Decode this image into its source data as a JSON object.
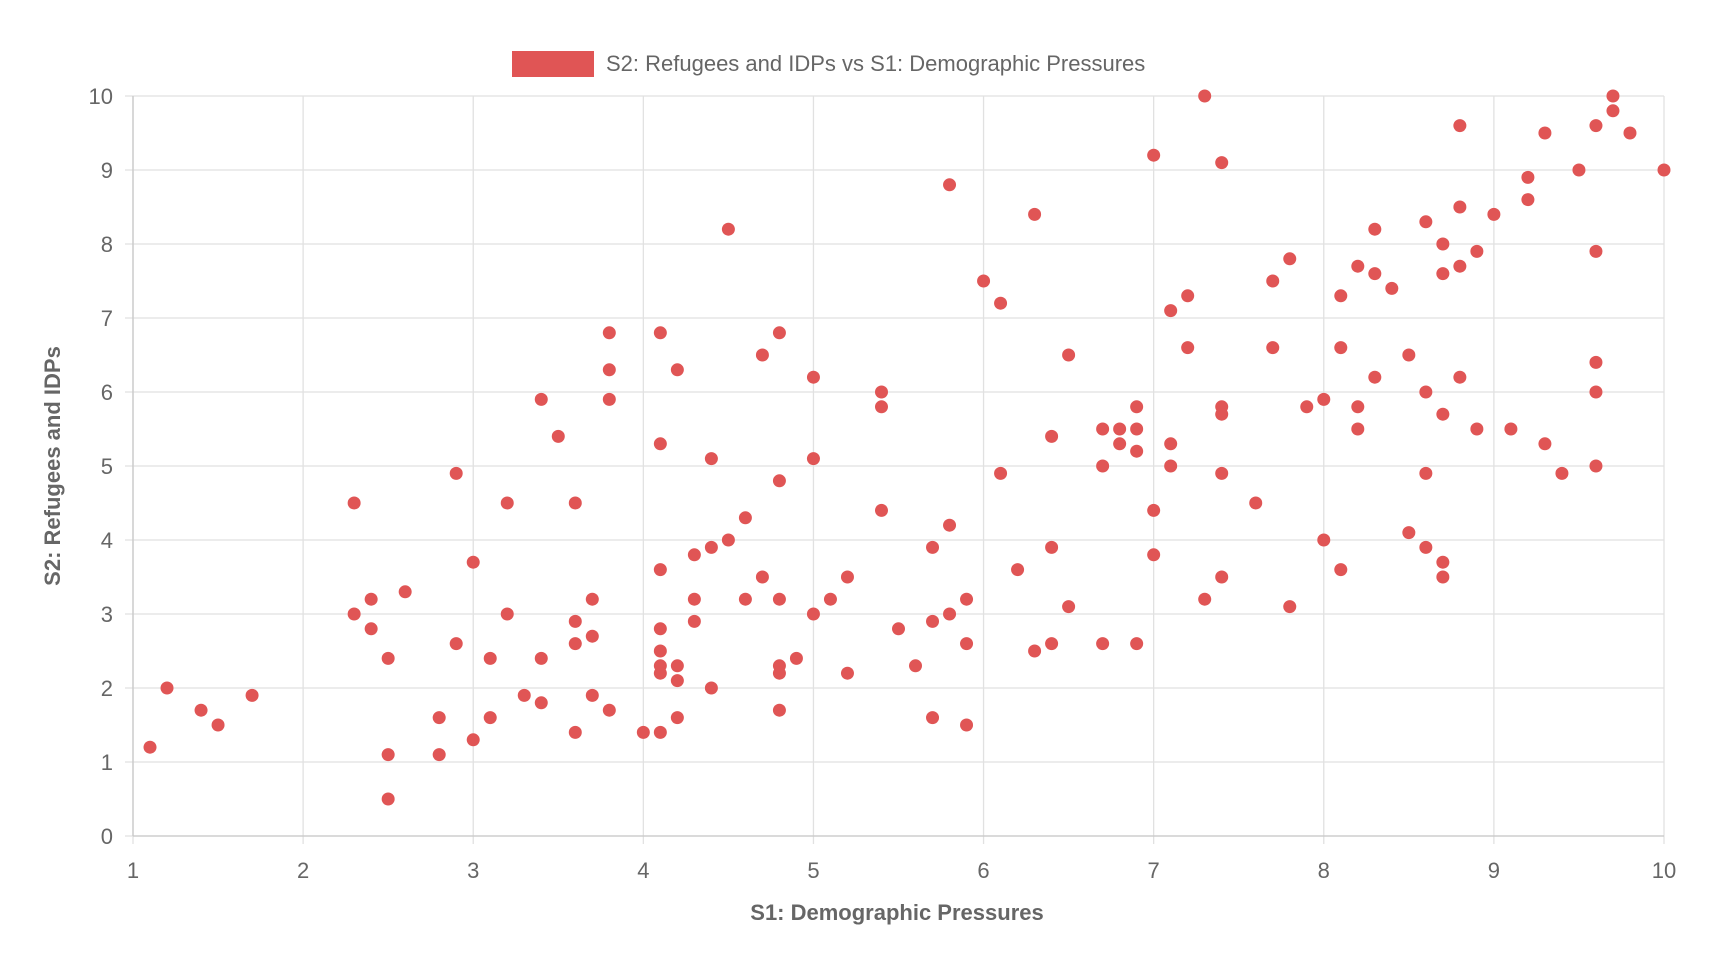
{
  "chart_data": {
    "type": "scatter",
    "xlabel": "S1: Demographic Pressures",
    "ylabel": "S2: Refugees and IDPs",
    "xlim": [
      1,
      10
    ],
    "ylim": [
      0,
      10
    ],
    "xticks": [
      "1",
      "2",
      "3",
      "4",
      "5",
      "6",
      "7",
      "8",
      "9",
      "10"
    ],
    "yticks": [
      "0",
      "1",
      "2",
      "3",
      "4",
      "5",
      "6",
      "7",
      "8",
      "9",
      "10"
    ],
    "grid": true,
    "legend": {
      "position": "top",
      "entries": [
        "S2: Refugees and IDPs vs S1: Demographic Pressures"
      ]
    },
    "series": [
      {
        "name": "S2: Refugees and IDPs vs S1: Demographic Pressures",
        "color": "#e05555",
        "points": [
          {
            "x": 1.1,
            "y": 1.2
          },
          {
            "x": 1.2,
            "y": 2.0
          },
          {
            "x": 1.4,
            "y": 1.7
          },
          {
            "x": 1.5,
            "y": 1.5
          },
          {
            "x": 1.7,
            "y": 1.9
          },
          {
            "x": 2.3,
            "y": 4.5
          },
          {
            "x": 2.3,
            "y": 3.0
          },
          {
            "x": 2.4,
            "y": 3.2
          },
          {
            "x": 2.4,
            "y": 2.8
          },
          {
            "x": 2.5,
            "y": 2.4
          },
          {
            "x": 2.5,
            "y": 1.1
          },
          {
            "x": 2.5,
            "y": 0.5
          },
          {
            "x": 2.6,
            "y": 3.3
          },
          {
            "x": 2.8,
            "y": 1.6
          },
          {
            "x": 2.8,
            "y": 1.1
          },
          {
            "x": 2.9,
            "y": 4.9
          },
          {
            "x": 2.9,
            "y": 2.6
          },
          {
            "x": 3.0,
            "y": 3.7
          },
          {
            "x": 3.0,
            "y": 1.3
          },
          {
            "x": 3.1,
            "y": 2.4
          },
          {
            "x": 3.1,
            "y": 1.6
          },
          {
            "x": 3.2,
            "y": 4.5
          },
          {
            "x": 3.2,
            "y": 3.0
          },
          {
            "x": 3.3,
            "y": 1.9
          },
          {
            "x": 3.4,
            "y": 5.9
          },
          {
            "x": 3.4,
            "y": 2.4
          },
          {
            "x": 3.4,
            "y": 1.8
          },
          {
            "x": 3.5,
            "y": 5.4
          },
          {
            "x": 3.6,
            "y": 4.5
          },
          {
            "x": 3.6,
            "y": 2.9
          },
          {
            "x": 3.6,
            "y": 2.6
          },
          {
            "x": 3.6,
            "y": 1.4
          },
          {
            "x": 3.7,
            "y": 3.2
          },
          {
            "x": 3.7,
            "y": 2.7
          },
          {
            "x": 3.7,
            "y": 1.9
          },
          {
            "x": 3.8,
            "y": 6.8
          },
          {
            "x": 3.8,
            "y": 6.3
          },
          {
            "x": 3.8,
            "y": 5.9
          },
          {
            "x": 3.8,
            "y": 1.7
          },
          {
            "x": 4.0,
            "y": 1.4
          },
          {
            "x": 4.1,
            "y": 6.8
          },
          {
            "x": 4.1,
            "y": 5.3
          },
          {
            "x": 4.1,
            "y": 3.6
          },
          {
            "x": 4.1,
            "y": 2.8
          },
          {
            "x": 4.1,
            "y": 2.5
          },
          {
            "x": 4.1,
            "y": 2.3
          },
          {
            "x": 4.1,
            "y": 2.2
          },
          {
            "x": 4.1,
            "y": 1.4
          },
          {
            "x": 4.2,
            "y": 6.3
          },
          {
            "x": 4.2,
            "y": 2.3
          },
          {
            "x": 4.2,
            "y": 2.1
          },
          {
            "x": 4.2,
            "y": 1.6
          },
          {
            "x": 4.3,
            "y": 3.8
          },
          {
            "x": 4.3,
            "y": 3.2
          },
          {
            "x": 4.3,
            "y": 2.9
          },
          {
            "x": 4.4,
            "y": 5.1
          },
          {
            "x": 4.4,
            "y": 3.9
          },
          {
            "x": 4.4,
            "y": 2.0
          },
          {
            "x": 4.5,
            "y": 8.2
          },
          {
            "x": 4.5,
            "y": 4.0
          },
          {
            "x": 4.6,
            "y": 4.3
          },
          {
            "x": 4.6,
            "y": 3.2
          },
          {
            "x": 4.7,
            "y": 6.5
          },
          {
            "x": 4.7,
            "y": 3.5
          },
          {
            "x": 4.8,
            "y": 6.8
          },
          {
            "x": 4.8,
            "y": 4.8
          },
          {
            "x": 4.8,
            "y": 3.2
          },
          {
            "x": 4.8,
            "y": 2.3
          },
          {
            "x": 4.8,
            "y": 2.2
          },
          {
            "x": 4.8,
            "y": 1.7
          },
          {
            "x": 4.9,
            "y": 2.4
          },
          {
            "x": 5.0,
            "y": 6.2
          },
          {
            "x": 5.0,
            "y": 5.1
          },
          {
            "x": 5.0,
            "y": 3.0
          },
          {
            "x": 5.1,
            "y": 3.2
          },
          {
            "x": 5.2,
            "y": 3.5
          },
          {
            "x": 5.2,
            "y": 2.2
          },
          {
            "x": 5.4,
            "y": 6.0
          },
          {
            "x": 5.4,
            "y": 5.8
          },
          {
            "x": 5.4,
            "y": 4.4
          },
          {
            "x": 5.5,
            "y": 2.8
          },
          {
            "x": 5.6,
            "y": 2.3
          },
          {
            "x": 5.7,
            "y": 3.9
          },
          {
            "x": 5.7,
            "y": 2.9
          },
          {
            "x": 5.7,
            "y": 1.6
          },
          {
            "x": 5.8,
            "y": 8.8
          },
          {
            "x": 5.8,
            "y": 4.2
          },
          {
            "x": 5.8,
            "y": 3.0
          },
          {
            "x": 5.9,
            "y": 3.2
          },
          {
            "x": 5.9,
            "y": 2.6
          },
          {
            "x": 5.9,
            "y": 1.5
          },
          {
            "x": 6.0,
            "y": 7.5
          },
          {
            "x": 6.1,
            "y": 7.2
          },
          {
            "x": 6.1,
            "y": 4.9
          },
          {
            "x": 6.2,
            "y": 3.6
          },
          {
            "x": 6.3,
            "y": 8.4
          },
          {
            "x": 6.3,
            "y": 2.5
          },
          {
            "x": 6.4,
            "y": 5.4
          },
          {
            "x": 6.4,
            "y": 3.9
          },
          {
            "x": 6.4,
            "y": 2.6
          },
          {
            "x": 6.5,
            "y": 6.5
          },
          {
            "x": 6.5,
            "y": 3.1
          },
          {
            "x": 6.7,
            "y": 5.5
          },
          {
            "x": 6.7,
            "y": 5.0
          },
          {
            "x": 6.7,
            "y": 2.6
          },
          {
            "x": 6.8,
            "y": 5.5
          },
          {
            "x": 6.8,
            "y": 5.3
          },
          {
            "x": 6.9,
            "y": 5.8
          },
          {
            "x": 6.9,
            "y": 5.5
          },
          {
            "x": 6.9,
            "y": 5.2
          },
          {
            "x": 6.9,
            "y": 2.6
          },
          {
            "x": 7.0,
            "y": 9.2
          },
          {
            "x": 7.0,
            "y": 4.4
          },
          {
            "x": 7.0,
            "y": 3.8
          },
          {
            "x": 7.1,
            "y": 7.1
          },
          {
            "x": 7.1,
            "y": 5.3
          },
          {
            "x": 7.1,
            "y": 5.0
          },
          {
            "x": 7.2,
            "y": 7.3
          },
          {
            "x": 7.2,
            "y": 6.6
          },
          {
            "x": 7.3,
            "y": 10.0
          },
          {
            "x": 7.3,
            "y": 3.2
          },
          {
            "x": 7.4,
            "y": 9.1
          },
          {
            "x": 7.4,
            "y": 5.8
          },
          {
            "x": 7.4,
            "y": 5.7
          },
          {
            "x": 7.4,
            "y": 4.9
          },
          {
            "x": 7.4,
            "y": 3.5
          },
          {
            "x": 7.6,
            "y": 4.5
          },
          {
            "x": 7.7,
            "y": 7.5
          },
          {
            "x": 7.7,
            "y": 6.6
          },
          {
            "x": 7.8,
            "y": 7.8
          },
          {
            "x": 7.8,
            "y": 3.1
          },
          {
            "x": 7.9,
            "y": 5.8
          },
          {
            "x": 8.0,
            "y": 5.9
          },
          {
            "x": 8.0,
            "y": 4.0
          },
          {
            "x": 8.1,
            "y": 7.3
          },
          {
            "x": 8.1,
            "y": 6.6
          },
          {
            "x": 8.1,
            "y": 3.6
          },
          {
            "x": 8.2,
            "y": 7.7
          },
          {
            "x": 8.2,
            "y": 5.8
          },
          {
            "x": 8.2,
            "y": 5.5
          },
          {
            "x": 8.3,
            "y": 8.2
          },
          {
            "x": 8.3,
            "y": 7.6
          },
          {
            "x": 8.3,
            "y": 6.2
          },
          {
            "x": 8.4,
            "y": 7.4
          },
          {
            "x": 8.5,
            "y": 6.5
          },
          {
            "x": 8.5,
            "y": 4.1
          },
          {
            "x": 8.6,
            "y": 8.3
          },
          {
            "x": 8.6,
            "y": 6.0
          },
          {
            "x": 8.6,
            "y": 4.9
          },
          {
            "x": 8.6,
            "y": 3.9
          },
          {
            "x": 8.7,
            "y": 8.0
          },
          {
            "x": 8.7,
            "y": 7.6
          },
          {
            "x": 8.7,
            "y": 5.7
          },
          {
            "x": 8.7,
            "y": 3.7
          },
          {
            "x": 8.7,
            "y": 3.5
          },
          {
            "x": 8.8,
            "y": 9.6
          },
          {
            "x": 8.8,
            "y": 8.5
          },
          {
            "x": 8.8,
            "y": 7.7
          },
          {
            "x": 8.8,
            "y": 6.2
          },
          {
            "x": 8.9,
            "y": 7.9
          },
          {
            "x": 8.9,
            "y": 5.5
          },
          {
            "x": 9.0,
            "y": 8.4
          },
          {
            "x": 9.1,
            "y": 5.5
          },
          {
            "x": 9.2,
            "y": 8.9
          },
          {
            "x": 9.2,
            "y": 8.6
          },
          {
            "x": 9.3,
            "y": 9.5
          },
          {
            "x": 9.3,
            "y": 5.3
          },
          {
            "x": 9.4,
            "y": 4.9
          },
          {
            "x": 9.5,
            "y": 9.0
          },
          {
            "x": 9.6,
            "y": 9.6
          },
          {
            "x": 9.6,
            "y": 7.9
          },
          {
            "x": 9.6,
            "y": 6.4
          },
          {
            "x": 9.6,
            "y": 6.0
          },
          {
            "x": 9.6,
            "y": 5.0
          },
          {
            "x": 9.7,
            "y": 10.0
          },
          {
            "x": 9.7,
            "y": 9.8
          },
          {
            "x": 9.8,
            "y": 9.5
          },
          {
            "x": 10.0,
            "y": 9.0
          }
        ]
      }
    ]
  }
}
